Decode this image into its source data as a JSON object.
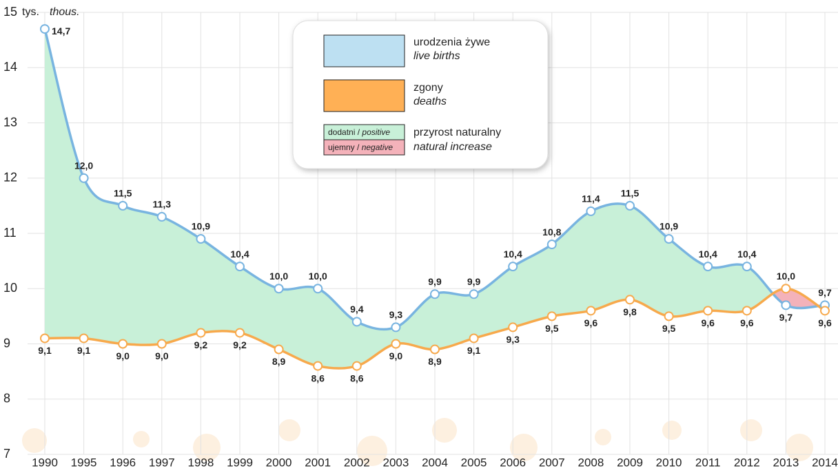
{
  "chart_data": {
    "type": "line",
    "y_unit": "tys.",
    "y_unit_en": "thous.",
    "categories": [
      "1990",
      "1995",
      "1996",
      "1997",
      "1998",
      "1999",
      "2000",
      "2001",
      "2002",
      "2003",
      "2004",
      "2005",
      "2006",
      "2007",
      "2008",
      "2009",
      "2010",
      "2011",
      "2012",
      "2013",
      "2014"
    ],
    "series": [
      {
        "name": "urodzenia żywe",
        "name_en": "live births",
        "color": "#78b4e0",
        "legend_color": "#bde0f2",
        "values": [
          14.7,
          12.0,
          11.5,
          11.3,
          10.9,
          10.4,
          10.0,
          10.0,
          9.4,
          9.3,
          9.9,
          9.9,
          10.4,
          10.8,
          11.4,
          11.5,
          10.9,
          10.4,
          10.4,
          9.7,
          9.7
        ],
        "value_labels": [
          "14,7",
          "12,0",
          "11,5",
          "11,3",
          "10,9",
          "10,4",
          "10,0",
          "10,0",
          "9,4",
          "9,3",
          "9,9",
          "9,9",
          "10,4",
          "10,8",
          "11,4",
          "11,5",
          "10,9",
          "10,4",
          "10,4",
          "9,7",
          "9,7"
        ]
      },
      {
        "name": "zgony",
        "name_en": "deaths",
        "color": "#f7a94c",
        "legend_color": "#ffb055",
        "values": [
          9.1,
          9.1,
          9.0,
          9.0,
          9.2,
          9.2,
          8.9,
          8.6,
          8.6,
          9.0,
          8.9,
          9.1,
          9.3,
          9.5,
          9.6,
          9.8,
          9.5,
          9.6,
          9.6,
          10.0,
          9.6
        ],
        "value_labels": [
          "9,1",
          "9,1",
          "9,0",
          "9,0",
          "9,2",
          "9,2",
          "8,9",
          "8,6",
          "8,6",
          "9,0",
          "8,9",
          "9,1",
          "9,3",
          "9,5",
          "9,6",
          "9,8",
          "9,5",
          "9,6",
          "9,6",
          "10,0",
          "9,6"
        ]
      }
    ],
    "increase": {
      "label": "przyrost naturalny",
      "label_en": "natural increase",
      "positive": {
        "label": "dodatni /",
        "label_en": "positive",
        "color": "#c8f0d8"
      },
      "negative": {
        "label": "ujemny /",
        "label_en": "negative",
        "color": "#f4b2ba"
      }
    },
    "ylim": [
      7,
      15
    ],
    "yticks": [
      7,
      8,
      9,
      10,
      11,
      12,
      13,
      14,
      15
    ],
    "grid": true
  }
}
